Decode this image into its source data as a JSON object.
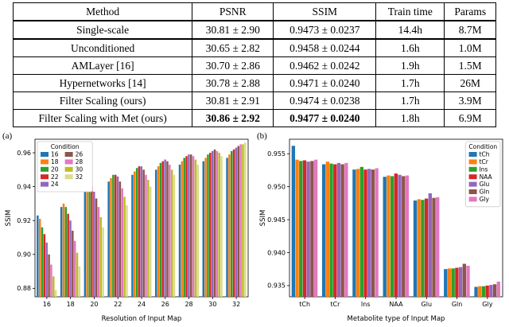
{
  "table": {
    "headers": [
      "Method",
      "PSNR",
      "SSIM",
      "Train time",
      "Params"
    ],
    "rows": [
      {
        "cells": [
          "Single-scale",
          "30.81 ± 2.90",
          "0.9473 ± 0.0237",
          "14.4h",
          "8.7M"
        ],
        "bold_cells": [],
        "thick_bottom": true
      },
      {
        "cells": [
          "Unconditioned",
          "30.65 ± 2.82",
          "0.9458 ± 0.0244",
          "1.6h",
          "1.0M"
        ],
        "bold_cells": []
      },
      {
        "cells": [
          "AMLayer [16]",
          "30.70 ± 2.86",
          "0.9462 ± 0.0242",
          "1.9h",
          "1.5M"
        ],
        "bold_cells": []
      },
      {
        "cells": [
          "Hypernetworks [14]",
          "30.78 ± 2.88",
          "0.9471 ± 0.0240",
          "1.7h",
          "26M"
        ],
        "bold_cells": []
      },
      {
        "cells": [
          "Filter Scaling (ours)",
          "30.81 ± 2.91",
          "0.9474 ± 0.0238",
          "1.7h",
          "3.9M"
        ],
        "bold_cells": []
      },
      {
        "cells": [
          "Filter Scaling with Met (ours)",
          "30.86 ± 2.92",
          "0.9477 ± 0.0240",
          "1.8h",
          "6.9M"
        ],
        "bold_cells": [
          1,
          2
        ]
      }
    ]
  },
  "chart_data": [
    {
      "type": "bar",
      "panel_label": "(a)",
      "title": "",
      "xlabel": "Resolution of Input Map",
      "ylabel": "SSIM",
      "categories": [
        "16",
        "18",
        "20",
        "22",
        "24",
        "26",
        "28",
        "30",
        "32"
      ],
      "ylim": [
        0.875,
        0.968
      ],
      "yticks": [
        0.88,
        0.9,
        0.92,
        0.94,
        0.96
      ],
      "ytick_labels": [
        "0.88",
        "0.90",
        "0.92",
        "0.94",
        "0.96"
      ],
      "legend": {
        "title": "Condition",
        "position": "top-left",
        "columns": 2
      },
      "series": [
        {
          "name": "16",
          "color": "#1f77b4",
          "values": [
            0.923,
            0.928,
            0.938,
            0.943,
            0.947,
            0.95,
            0.953,
            0.955,
            0.957
          ]
        },
        {
          "name": "18",
          "color": "#ff7f0e",
          "values": [
            0.921,
            0.93,
            0.94,
            0.945,
            0.949,
            0.952,
            0.955,
            0.957,
            0.959
          ]
        },
        {
          "name": "20",
          "color": "#2ca02c",
          "values": [
            0.916,
            0.928,
            0.941,
            0.947,
            0.951,
            0.954,
            0.957,
            0.959,
            0.961
          ]
        },
        {
          "name": "22",
          "color": "#d62728",
          "values": [
            0.912,
            0.924,
            0.94,
            0.947,
            0.952,
            0.955,
            0.958,
            0.96,
            0.962
          ]
        },
        {
          "name": "24",
          "color": "#9467bd",
          "values": [
            0.907,
            0.92,
            0.937,
            0.946,
            0.952,
            0.956,
            0.959,
            0.961,
            0.963
          ]
        },
        {
          "name": "26",
          "color": "#8c564b",
          "values": [
            0.9,
            0.914,
            0.933,
            0.943,
            0.95,
            0.955,
            0.959,
            0.962,
            0.964
          ]
        },
        {
          "name": "28",
          "color": "#e377c2",
          "values": [
            0.894,
            0.908,
            0.928,
            0.939,
            0.947,
            0.953,
            0.958,
            0.961,
            0.965
          ]
        },
        {
          "name": "30",
          "color": "#bcbd22",
          "values": [
            0.887,
            0.901,
            0.922,
            0.934,
            0.944,
            0.95,
            0.956,
            0.96,
            0.965
          ]
        },
        {
          "name": "32",
          "color": "#dbdb8d",
          "values": [
            0.879,
            0.893,
            0.916,
            0.929,
            0.94,
            0.947,
            0.953,
            0.958,
            0.966
          ]
        }
      ]
    },
    {
      "type": "bar",
      "panel_label": "(b)",
      "title": "",
      "xlabel": "Metabolite type of Input Map",
      "ylabel": "SSIM",
      "categories": [
        "tCh",
        "tCr",
        "Ins",
        "NAA",
        "Glu",
        "Gln",
        "Gly"
      ],
      "ylim": [
        0.9333,
        0.9572
      ],
      "yticks": [
        0.935,
        0.94,
        0.945,
        0.95,
        0.955
      ],
      "ytick_labels": [
        "0.935",
        "0.940",
        "0.945",
        "0.950",
        "0.955"
      ],
      "legend": {
        "title": "Condition",
        "position": "top-right",
        "columns": 1
      },
      "series": [
        {
          "name": "tCh",
          "color": "#1f77b4",
          "values": [
            0.9562,
            0.9534,
            0.9526,
            0.9515,
            0.9479,
            0.9375,
            0.9348
          ]
        },
        {
          "name": "tCr",
          "color": "#ff7f0e",
          "values": [
            0.9541,
            0.9538,
            0.9527,
            0.9517,
            0.9481,
            0.9376,
            0.9349
          ]
        },
        {
          "name": "Ins",
          "color": "#2ca02c",
          "values": [
            0.9539,
            0.9535,
            0.953,
            0.9516,
            0.948,
            0.9376,
            0.9349
          ]
        },
        {
          "name": "NAA",
          "color": "#d62728",
          "values": [
            0.954,
            0.9534,
            0.9526,
            0.952,
            0.9482,
            0.9377,
            0.935
          ]
        },
        {
          "name": "Glu",
          "color": "#9467bd",
          "values": [
            0.9538,
            0.9536,
            0.9527,
            0.9518,
            0.949,
            0.9378,
            0.9351
          ]
        },
        {
          "name": "Gln",
          "color": "#8c564b",
          "values": [
            0.9539,
            0.9534,
            0.9526,
            0.9516,
            0.9483,
            0.9383,
            0.9352
          ]
        },
        {
          "name": "Gly",
          "color": "#e377c2",
          "values": [
            0.9541,
            0.9536,
            0.9528,
            0.9517,
            0.9484,
            0.938,
            0.9356
          ]
        }
      ]
    }
  ]
}
